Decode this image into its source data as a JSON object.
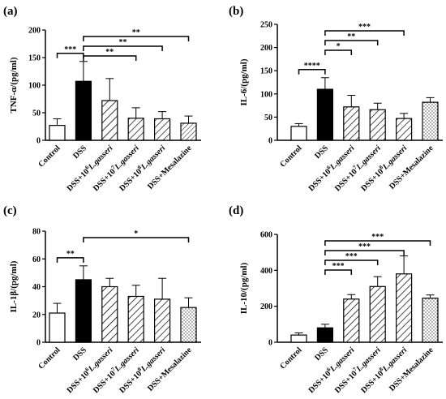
{
  "colors": {
    "dss_fill": "#000000",
    "control_fill": "#ffffff",
    "stroke": "#000000"
  },
  "categories": [
    "Control",
    "DSS",
    "DSS+10|6|L.gasseri",
    "DSS+10|7|L.gasseri",
    "DSS+10|8|L.gasseri",
    "DSS+Mesalazine"
  ],
  "chart_data": [
    {
      "panel": "(a)",
      "type": "bar",
      "ylabel": "TNF-α/(pg/ml)",
      "ylim": [
        0,
        200
      ],
      "yticks": [
        0,
        50,
        100,
        150,
        200
      ],
      "values": [
        27,
        107,
        72,
        40,
        39,
        31
      ],
      "errors": [
        12,
        36,
        40,
        19,
        13,
        13
      ],
      "patterns": [
        "none",
        "solid",
        "hatch-wide",
        "hatch",
        "hatch",
        "hatch-fine"
      ],
      "comparisons": [
        {
          "from": 0,
          "to": 1,
          "label": "***"
        },
        {
          "from": 1,
          "to": 3,
          "label": "**"
        },
        {
          "from": 1,
          "to": 4,
          "label": "**"
        },
        {
          "from": 1,
          "to": 5,
          "label": "**"
        }
      ]
    },
    {
      "panel": "(b)",
      "type": "bar",
      "ylabel": "IL-6/(pg/ml)",
      "ylim": [
        0,
        250
      ],
      "yticks": [
        0,
        50,
        100,
        150,
        200,
        250
      ],
      "values": [
        30,
        110,
        72,
        66,
        47,
        82
      ],
      "errors": [
        6,
        25,
        25,
        14,
        11,
        10
      ],
      "patterns": [
        "none",
        "solid",
        "hatch",
        "hatch",
        "hatch",
        "dots"
      ],
      "comparisons": [
        {
          "from": 0,
          "to": 1,
          "label": "****"
        },
        {
          "from": 1,
          "to": 2,
          "label": "*"
        },
        {
          "from": 1,
          "to": 3,
          "label": "**"
        },
        {
          "from": 1,
          "to": 4,
          "label": "***"
        }
      ]
    },
    {
      "panel": "(c)",
      "type": "bar",
      "ylabel": "IL-1β/(pg/ml)",
      "ylim": [
        0,
        80
      ],
      "yticks": [
        0,
        20,
        40,
        60,
        80
      ],
      "values": [
        21,
        45,
        40,
        33,
        31,
        25
      ],
      "errors": [
        7,
        10,
        6,
        8,
        15,
        7
      ],
      "patterns": [
        "none",
        "solid",
        "hatch-wide",
        "hatch",
        "hatch",
        "dots"
      ],
      "comparisons": [
        {
          "from": 0,
          "to": 1,
          "label": "**"
        },
        {
          "from": 1,
          "to": 5,
          "label": "*"
        }
      ]
    },
    {
      "panel": "(d)",
      "type": "bar",
      "ylabel": "IL-10/(pg/ml)",
      "ylim": [
        0,
        600
      ],
      "yticks": [
        0,
        200,
        400,
        600
      ],
      "values": [
        40,
        80,
        240,
        310,
        380,
        245
      ],
      "errors": [
        12,
        20,
        25,
        55,
        100,
        18
      ],
      "patterns": [
        "none",
        "solid",
        "hatch",
        "hatch",
        "hatch",
        "dots"
      ],
      "comparisons": [
        {
          "from": 1,
          "to": 2,
          "label": "***"
        },
        {
          "from": 1,
          "to": 3,
          "label": "***"
        },
        {
          "from": 1,
          "to": 4,
          "label": "***"
        },
        {
          "from": 1,
          "to": 5,
          "label": "***"
        }
      ]
    }
  ]
}
